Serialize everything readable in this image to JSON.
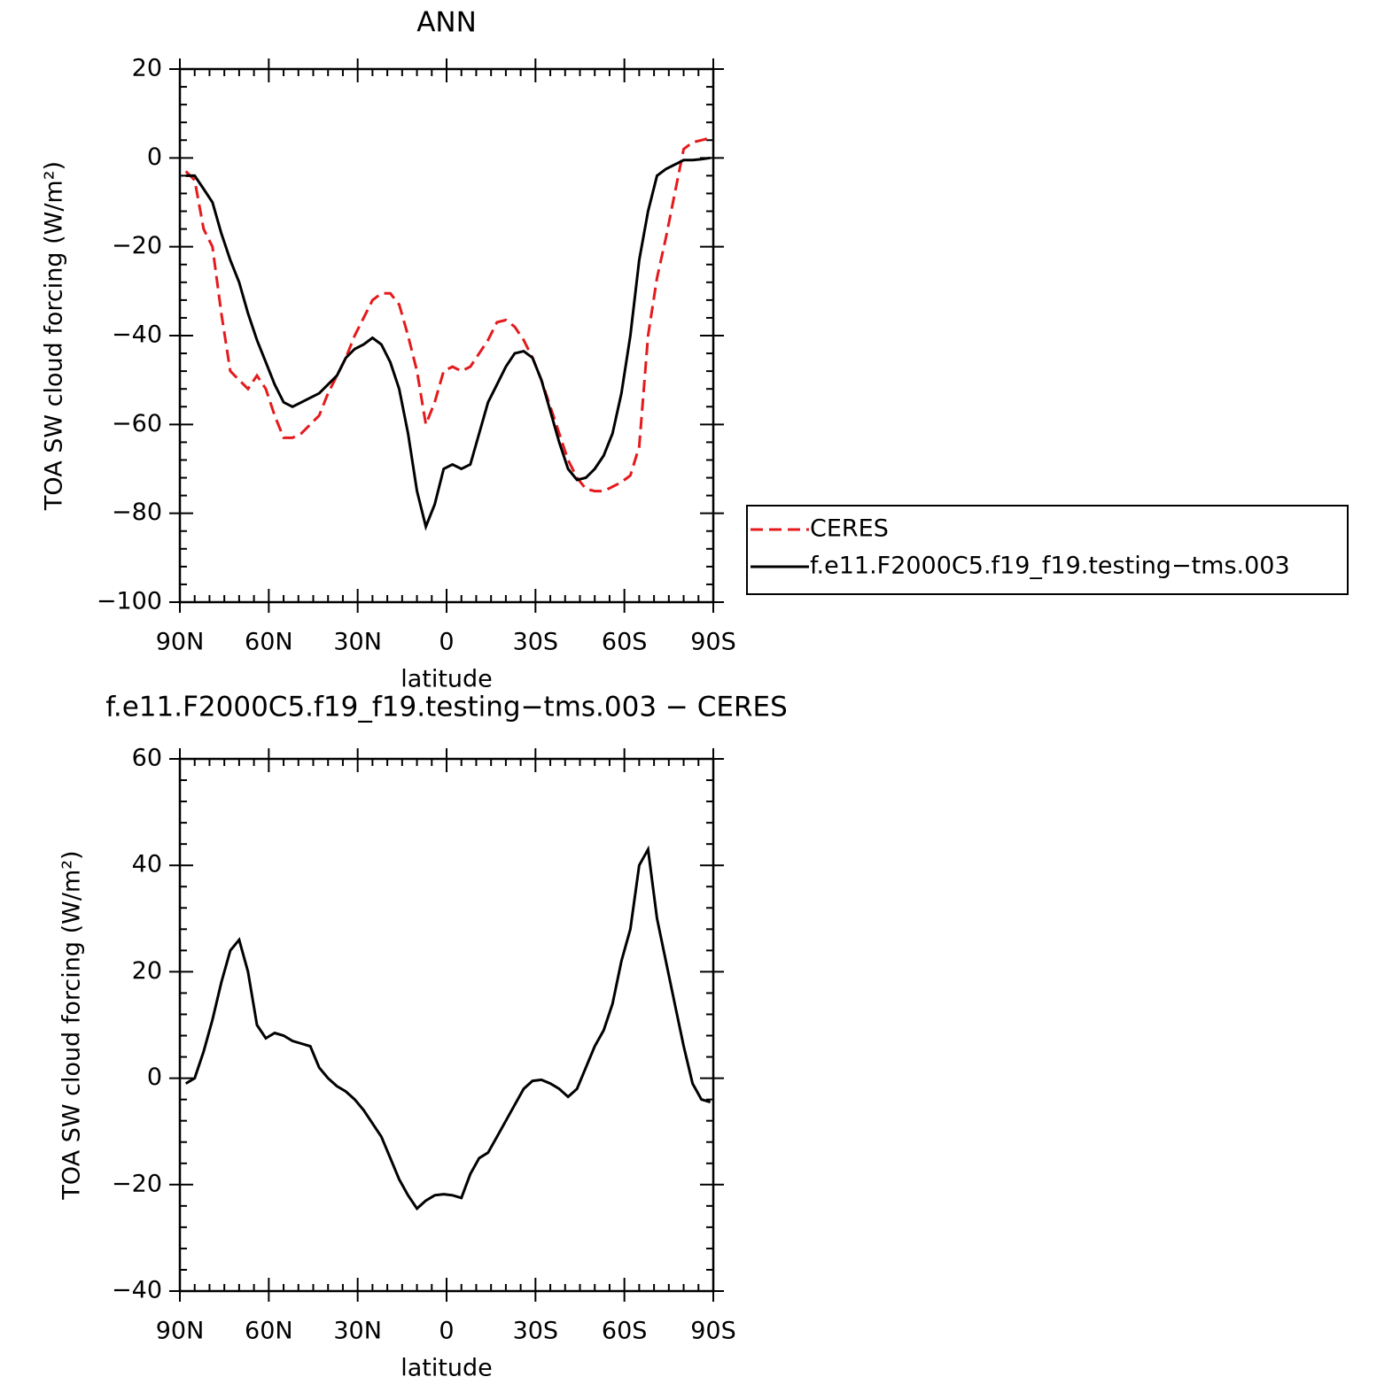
{
  "chart_data": [
    {
      "type": "line",
      "title": "ANN",
      "xlabel": "latitude",
      "ylabel": "TOA SW cloud forcing (W/m²)",
      "legend": "right",
      "x": [
        88,
        85,
        82,
        79,
        76,
        73,
        70,
        67,
        64,
        61,
        58,
        55,
        52,
        49,
        46,
        43,
        40,
        37,
        34,
        31,
        28,
        25,
        22,
        19,
        16,
        13,
        10,
        7,
        4,
        1,
        -2,
        -5,
        -8,
        -11,
        -14,
        -17,
        -20,
        -23,
        -26,
        -29,
        -32,
        -35,
        -38,
        -41,
        -44,
        -47,
        -50,
        -53,
        -56,
        -59,
        -62,
        -65,
        -68,
        -71,
        -74,
        -77,
        -80,
        -83,
        -86,
        -89
      ],
      "series": [
        {
          "name": "CERES",
          "color": "#e41a1c",
          "linestyle": "dashed",
          "values": [
            -3,
            -5,
            -16,
            -20,
            -35,
            -48,
            -50,
            -52,
            -49,
            -52,
            -58,
            -63,
            -63,
            -62,
            -60,
            -58,
            -53,
            -49,
            -45,
            -40,
            -36,
            -32,
            -30.5,
            -30.5,
            -33,
            -40,
            -48,
            -60,
            -55,
            -48,
            -47,
            -48,
            -47,
            -44,
            -41,
            -37,
            -36.5,
            -38,
            -41,
            -45,
            -50,
            -56,
            -62,
            -68,
            -72,
            -74.5,
            -75,
            -75,
            -74,
            -73,
            -71.5,
            -65,
            -40,
            -27,
            -18,
            -8,
            2,
            3.5,
            4,
            4.5
          ]
        },
        {
          "name": "f.e11.F2000C5.f19_f19.testing−tms.003",
          "color": "#000000",
          "linestyle": "solid",
          "values": [
            -4,
            -4,
            -7,
            -10,
            -17,
            -23,
            -28,
            -35,
            -41,
            -46,
            -51,
            -55,
            -56,
            -55,
            -54,
            -53,
            -51,
            -49,
            -45,
            -43,
            -42,
            -40.5,
            -42,
            -46,
            -52,
            -62,
            -75,
            -83,
            -78,
            -70,
            -69,
            -70,
            -69,
            -62,
            -55,
            -51,
            -47,
            -44,
            -43.5,
            -45,
            -50,
            -57,
            -64,
            -70,
            -72.5,
            -72,
            -70,
            -67,
            -62,
            -53,
            -40,
            -23,
            -12,
            -4,
            -2.5,
            -1.5,
            -0.5,
            -0.5,
            -0.3,
            0
          ]
        }
      ],
      "xlim": [
        90,
        -90
      ],
      "xticks": [
        {
          "value": 90,
          "label": "90N"
        },
        {
          "value": 60,
          "label": "60N"
        },
        {
          "value": 30,
          "label": "30N"
        },
        0,
        {
          "value": -30,
          "label": "30S"
        },
        {
          "value": -60,
          "label": "60S"
        },
        {
          "value": -90,
          "label": "90S"
        }
      ],
      "ylim": [
        -100,
        20
      ],
      "yticks": [
        {
          "value": -100,
          "label": "−100"
        },
        {
          "value": -80,
          "label": "−80"
        },
        {
          "value": -60,
          "label": "−60"
        },
        {
          "value": -40,
          "label": "−40"
        },
        {
          "value": -20,
          "label": "−20"
        },
        0,
        20
      ]
    },
    {
      "type": "line",
      "title": "f.e11.F2000C5.f19_f19.testing−tms.003 − CERES",
      "xlabel": "latitude",
      "ylabel": "TOA SW cloud forcing (W/m²)",
      "x": [
        88,
        85,
        82,
        79,
        76,
        73,
        70,
        67,
        64,
        61,
        58,
        55,
        52,
        49,
        46,
        43,
        40,
        37,
        34,
        31,
        28,
        25,
        22,
        19,
        16,
        13,
        10,
        7,
        4,
        1,
        -2,
        -5,
        -8,
        -11,
        -14,
        -17,
        -20,
        -23,
        -26,
        -29,
        -32,
        -35,
        -38,
        -41,
        -44,
        -47,
        -50,
        -53,
        -56,
        -59,
        -62,
        -65,
        -68,
        -71,
        -74,
        -77,
        -80,
        -83,
        -86,
        -89
      ],
      "series": [
        {
          "color": "#000000",
          "linestyle": "solid",
          "values": [
            -1,
            0,
            5,
            11,
            18,
            24,
            26,
            20,
            10,
            7.5,
            8.5,
            8,
            7,
            6.5,
            6,
            2,
            0,
            -1.5,
            -2.5,
            -4,
            -6,
            -8.5,
            -11,
            -15,
            -19,
            -22,
            -24.5,
            -23,
            -22,
            -21.8,
            -22,
            -22.5,
            -18,
            -15,
            -14,
            -11,
            -8,
            -5,
            -2,
            -0.5,
            -0.3,
            -1,
            -2,
            -3.5,
            -2,
            2,
            6,
            9,
            14,
            22,
            28,
            40,
            43,
            30,
            22,
            14,
            6,
            -1,
            -4,
            -4.5
          ]
        }
      ],
      "xlim": [
        90,
        -90
      ],
      "xticks": [
        {
          "value": 90,
          "label": "90N"
        },
        {
          "value": 60,
          "label": "60N"
        },
        {
          "value": 30,
          "label": "30N"
        },
        0,
        {
          "value": -30,
          "label": "30S"
        },
        {
          "value": -60,
          "label": "60S"
        },
        {
          "value": -90,
          "label": "90S"
        }
      ],
      "ylim": [
        -40,
        60
      ],
      "yticks": [
        {
          "value": -40,
          "label": "−40"
        },
        {
          "value": -20,
          "label": "−20"
        },
        0,
        20,
        40,
        60
      ]
    }
  ]
}
